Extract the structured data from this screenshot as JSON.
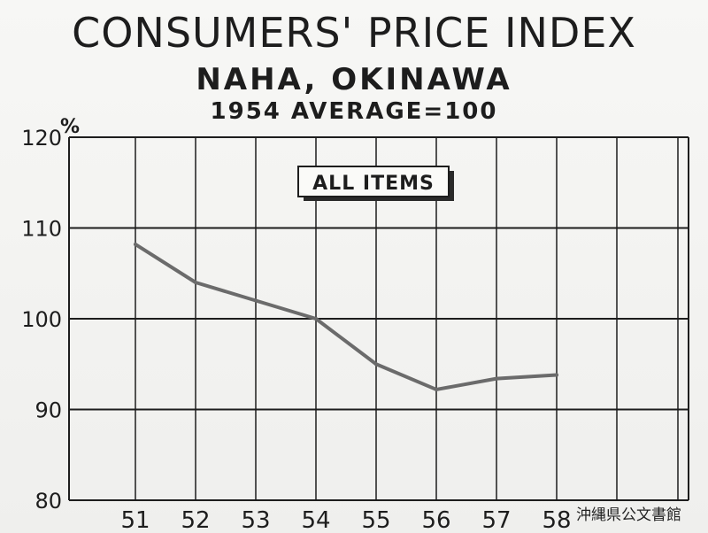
{
  "chart_data": {
    "type": "line",
    "title": "CONSUMERS' PRICE INDEX",
    "subtitle": "NAHA, OKINAWA",
    "note": "1954 AVERAGE=100",
    "ylabel": "%",
    "legend": "ALL ITEMS",
    "categories": [
      "51",
      "52",
      "53",
      "54",
      "55",
      "56",
      "57",
      "58"
    ],
    "values": [
      108.2,
      104.0,
      102.0,
      100.0,
      95.0,
      92.2,
      93.4,
      93.8
    ],
    "yticks": [
      "80",
      "90",
      "100",
      "110",
      "120"
    ],
    "ylim": [
      80,
      120
    ],
    "grid": true,
    "line_color": "#6b6b6b"
  },
  "watermark": "沖縄県公文書館"
}
